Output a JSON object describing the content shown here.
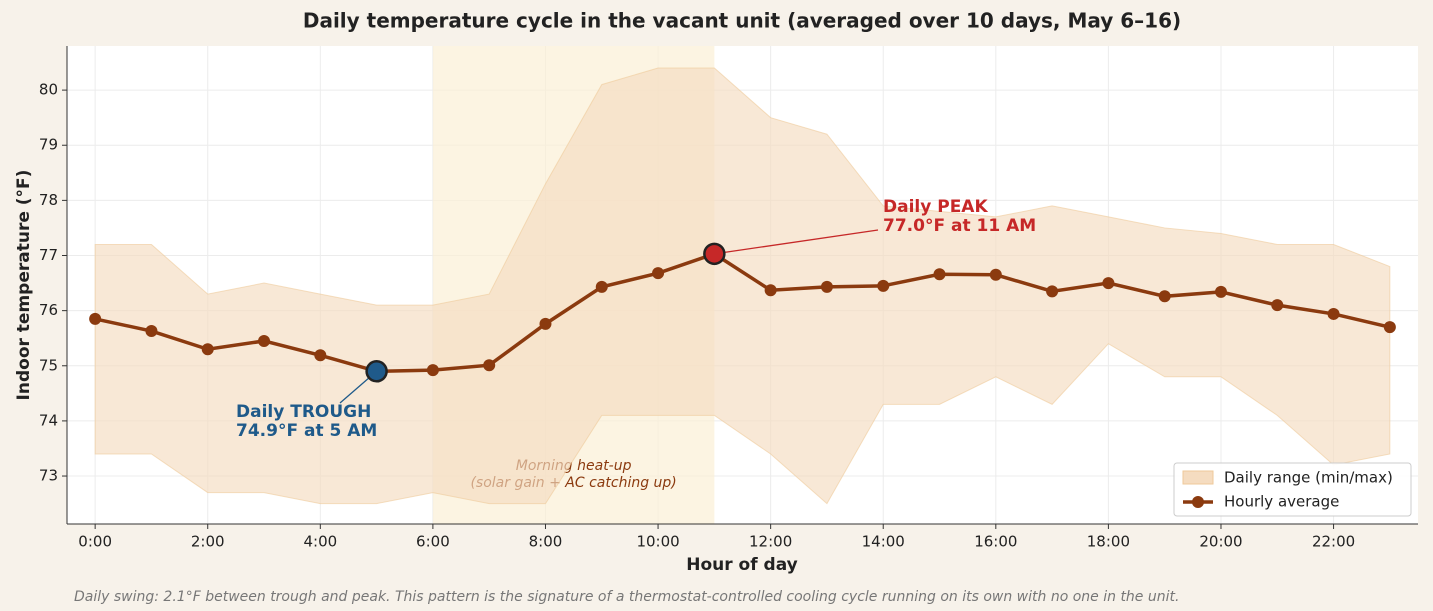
{
  "chart_data": {
    "type": "line",
    "title": "Daily temperature cycle in the vacant unit (averaged over 10 days, May 6–16)",
    "xlabel": "Hour of day",
    "ylabel": "Indoor temperature (°F)",
    "footnote": "Daily swing: 2.1°F between trough and peak. This pattern is the signature of a thermostat-controlled cooling cycle running on its own with no one in the unit.",
    "x": [
      0,
      1,
      2,
      3,
      4,
      5,
      6,
      7,
      8,
      9,
      10,
      11,
      12,
      13,
      14,
      15,
      16,
      17,
      18,
      19,
      20,
      21,
      22,
      23
    ],
    "series": [
      {
        "name": "Daily range (min/max)",
        "color": "#f5dcc0",
        "upper": [
          77.2,
          77.2,
          76.3,
          76.5,
          76.3,
          76.1,
          76.1,
          76.3,
          78.3,
          80.1,
          80.4,
          80.4,
          79.5,
          79.2,
          77.9,
          77.8,
          77.7,
          77.9,
          77.7,
          77.5,
          77.4,
          77.2,
          77.2,
          76.8
        ],
        "lower": [
          73.4,
          73.4,
          72.7,
          72.7,
          72.5,
          72.5,
          72.7,
          72.5,
          72.5,
          74.1,
          74.1,
          74.1,
          73.4,
          72.5,
          74.3,
          74.3,
          74.8,
          74.3,
          75.4,
          74.8,
          74.8,
          74.1,
          73.2,
          73.4
        ]
      },
      {
        "name": "Hourly average",
        "color": "#8b3a0f",
        "values": [
          75.85,
          75.63,
          75.3,
          75.45,
          75.19,
          74.9,
          74.92,
          75.01,
          75.76,
          76.43,
          76.68,
          77.03,
          76.37,
          76.43,
          76.45,
          76.66,
          76.65,
          76.35,
          76.5,
          76.26,
          76.34,
          76.1,
          75.94,
          75.7
        ]
      }
    ],
    "spans": [
      {
        "x0": 6,
        "x1": 11,
        "color": "#fbf0d5",
        "label": [
          "Morning heat-up",
          "(solar gain + AC catching up)"
        ]
      }
    ],
    "annotations": [
      {
        "x": 5,
        "color": "#1f5a8a",
        "lines": [
          "Daily TROUGH",
          "74.9°F at 5 AM"
        ]
      },
      {
        "x": 11,
        "color": "#c62828",
        "lines": [
          "Daily PEAK",
          "77.0°F at 11 AM"
        ]
      }
    ],
    "xlim": [
      -0.5,
      23.5
    ],
    "ylim": [
      72.13,
      80.8
    ],
    "xticks": [
      {
        "value": 0,
        "label": "0:00"
      },
      {
        "value": 2,
        "label": "2:00"
      },
      {
        "value": 4,
        "label": "4:00"
      },
      {
        "value": 6,
        "label": "6:00"
      },
      {
        "value": 8,
        "label": "8:00"
      },
      {
        "value": 10,
        "label": "10:00"
      },
      {
        "value": 12,
        "label": "12:00"
      },
      {
        "value": 14,
        "label": "14:00"
      },
      {
        "value": 16,
        "label": "16:00"
      },
      {
        "value": 18,
        "label": "18:00"
      },
      {
        "value": 20,
        "label": "20:00"
      },
      {
        "value": 22,
        "label": "22:00"
      }
    ],
    "yticks": [
      73,
      74,
      75,
      76,
      77,
      78,
      79,
      80
    ],
    "grid": true,
    "legend": "lower right"
  }
}
